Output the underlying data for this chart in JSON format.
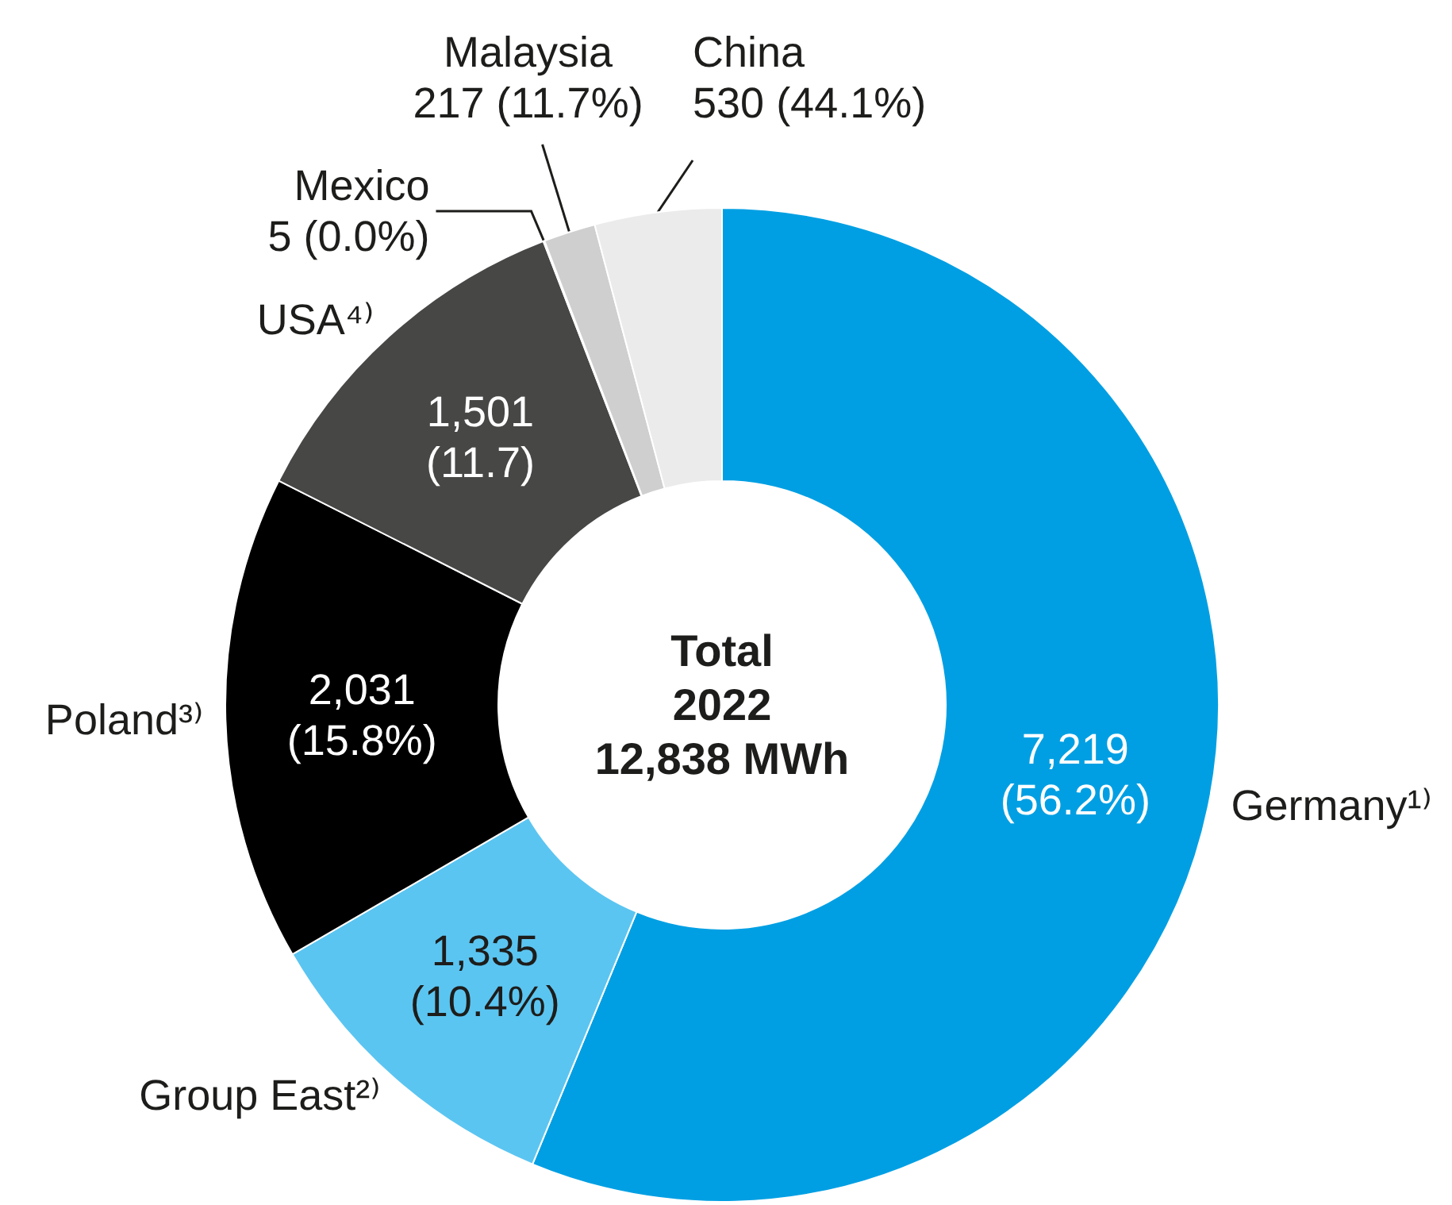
{
  "chart_data": {
    "type": "donut",
    "categories": [
      "Germany¹⁾",
      "Group East²⁾",
      "Poland³⁾",
      "USA⁴⁾",
      "Mexico",
      "Malaysia",
      "China"
    ],
    "values": [
      7219,
      1335,
      2031,
      1501,
      5,
      217,
      530
    ],
    "colors": [
      "#009fe3",
      "#5bc5f1",
      "#000000",
      "#474746",
      "#9d9d9c",
      "#cfcfcf",
      "#ebebeb"
    ],
    "value_labels": [
      "7,219 (56.2%)",
      "1,335 (10.4%)",
      "2,031 (15.8%)",
      "1,501 (11.7)",
      "5 (0.0%)",
      "217 (11.7%)",
      "530 (44.1%)"
    ],
    "annotations": [
      "Total",
      "2022",
      "12,838 MWh"
    ]
  }
}
